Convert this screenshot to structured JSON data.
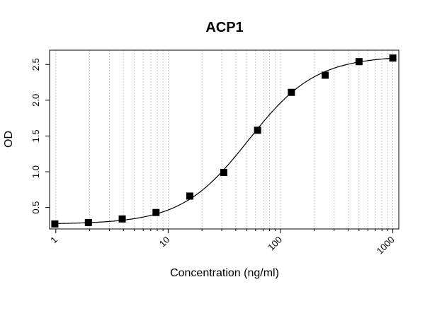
{
  "chart_data": {
    "type": "scatter",
    "title": "ACP1",
    "xlabel": "Concentration (ng/ml)",
    "ylabel": "OD",
    "x_scale": "log",
    "xlim": [
      0.88,
      1130
    ],
    "ylim": [
      0.2,
      2.7
    ],
    "x_ticks": [
      1,
      10,
      100,
      1000
    ],
    "x_tick_labels": [
      "1",
      "10",
      "100",
      "1000"
    ],
    "y_ticks": [
      0.5,
      1.0,
      1.5,
      2.0,
      2.5
    ],
    "y_tick_labels": [
      "0.5",
      "1.0",
      "1.5",
      "2.0",
      "2.5"
    ],
    "grid": "vertical dotted at log minor ticks",
    "series": [
      {
        "marker": "square",
        "x": [
          0.98,
          1.95,
          3.9,
          7.8,
          15.6,
          31.25,
          62.5,
          125,
          250,
          500,
          1000
        ],
        "y": [
          0.27,
          0.29,
          0.34,
          0.43,
          0.66,
          0.99,
          1.58,
          2.11,
          2.35,
          2.54,
          2.59
        ]
      }
    ],
    "fit_curve": {
      "type": "4PL",
      "bottom": 0.268,
      "top": 2.62,
      "ec50": 52,
      "hill": 1.45
    }
  }
}
